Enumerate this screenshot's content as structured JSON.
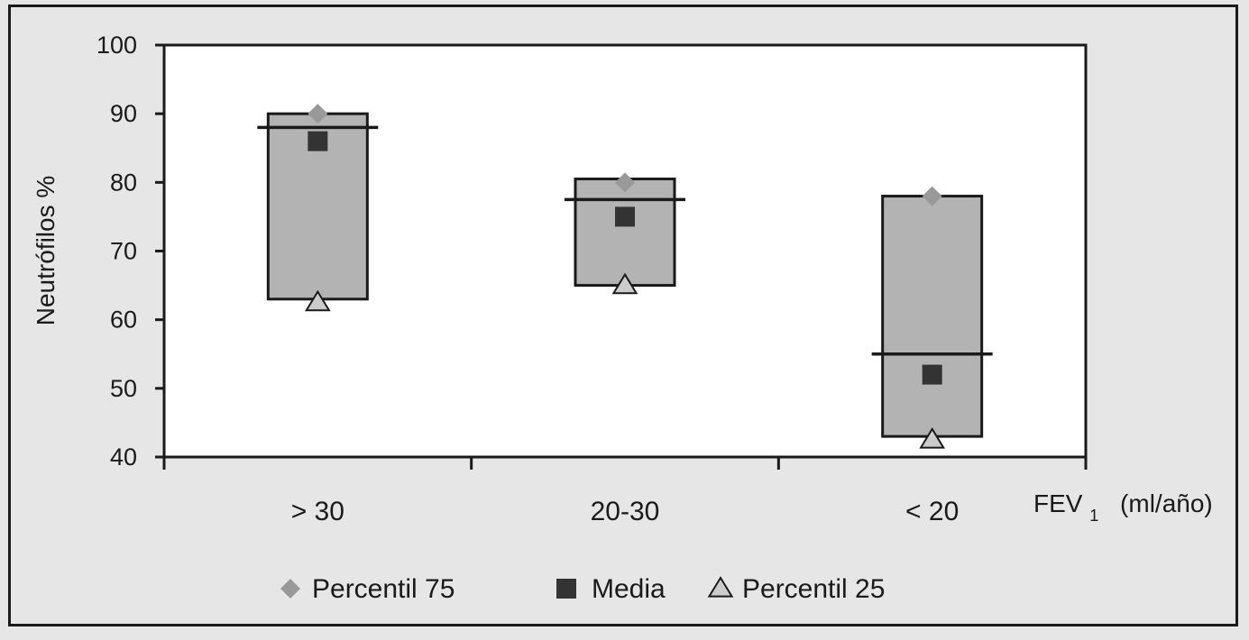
{
  "chart_data": {
    "type": "box",
    "title": "",
    "ylabel": "Neutrófilos %",
    "xlabel_main": "FEV",
    "xlabel_sub": "1",
    "xlabel_unit": "(ml/año)",
    "ylim": [
      40,
      100
    ],
    "yticks": [
      "40",
      "50",
      "60",
      "70",
      "80",
      "90",
      "100"
    ],
    "categories": [
      "> 30",
      "20-30",
      "< 20"
    ],
    "series": [
      {
        "name": "Percentil 75",
        "values": [
          90,
          80,
          78
        ]
      },
      {
        "name": "Media",
        "values": [
          86,
          75,
          52
        ]
      },
      {
        "name": "Percentil 25",
        "values": [
          62.5,
          65,
          42.5
        ]
      }
    ],
    "boxes": [
      {
        "low": 63,
        "high": 90,
        "line": 88
      },
      {
        "low": 65,
        "high": 80.5,
        "line": 77.5
      },
      {
        "low": 43,
        "high": 78,
        "line": 55
      }
    ],
    "legend_position": "bottom",
    "colors": {
      "background": "#e6e6e6",
      "plot_area": "#ffffff",
      "box_fill": "#b3b3b3",
      "percentil75": "#999999",
      "media": "#333333",
      "percentil25": "#cccccc",
      "ink": "#1a1a1a"
    }
  }
}
